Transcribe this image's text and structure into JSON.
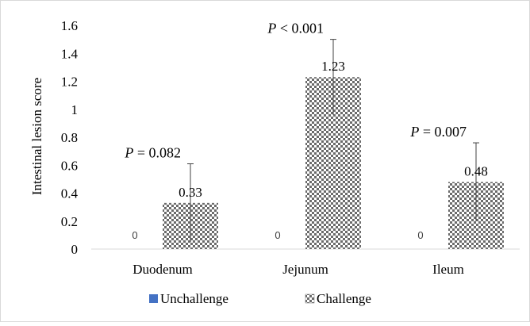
{
  "chart_data": {
    "type": "bar",
    "categories": [
      "Duodenum",
      "Jejunum",
      "Ileum"
    ],
    "ylabel": "Intestinal lesion score",
    "ylim": [
      0,
      1.6
    ],
    "yticks": [
      "0",
      "0.2",
      "0.4",
      "0.6",
      "0.8",
      "1",
      "1.2",
      "1.4",
      "1.6"
    ],
    "grid": false,
    "legend_position": "bottom",
    "series": [
      {
        "name": "Unchallenge",
        "values": [
          0,
          0,
          0
        ],
        "labels": [
          "0",
          "0",
          "0"
        ],
        "color": "#4472C4",
        "pattern": "solid"
      },
      {
        "name": "Challenge",
        "values": [
          0.33,
          1.23,
          0.48
        ],
        "labels": [
          "0.33",
          "1.23",
          "0.48"
        ],
        "error": [
          0.28,
          0.27,
          0.28
        ],
        "color": "#595959",
        "pattern": "checker"
      }
    ],
    "annotations": [
      {
        "italic": "P",
        "rest": " = 0.082",
        "category": "Duodenum"
      },
      {
        "italic": "P",
        "rest": " < 0.001",
        "category": "Jejunum"
      },
      {
        "italic": "P",
        "rest": " = 0.007",
        "category": "Ileum"
      }
    ]
  }
}
